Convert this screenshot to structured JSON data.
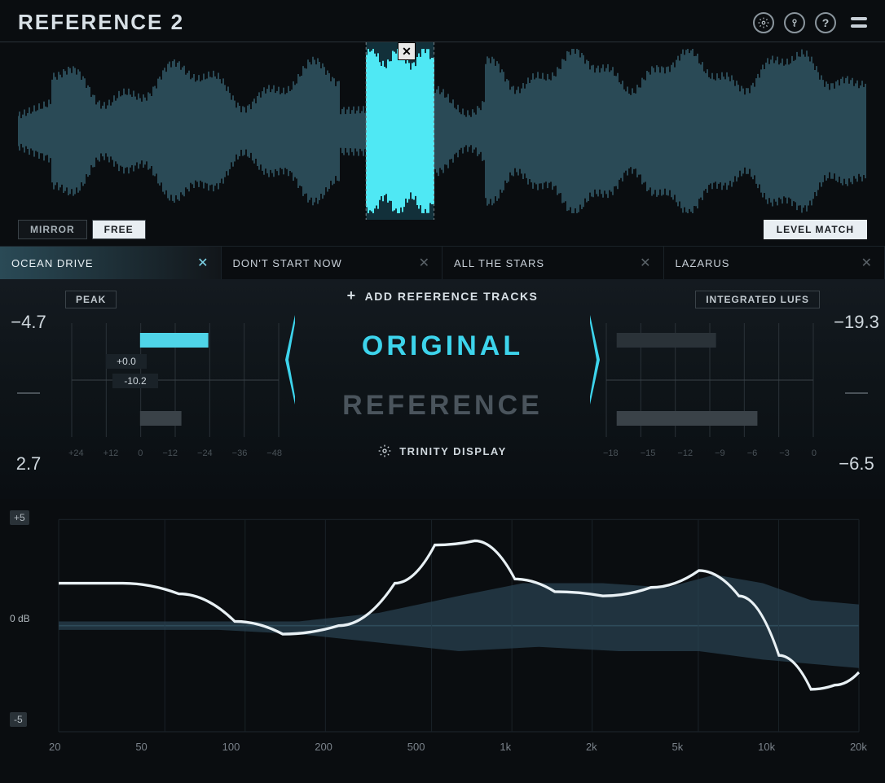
{
  "header": {
    "title": "REFERENCE 2"
  },
  "modes": {
    "mirror": "MIRROR",
    "free": "FREE",
    "level_match": "LEVEL MATCH",
    "active": "free"
  },
  "tracks": [
    {
      "name": "OCEAN DRIVE",
      "active": true
    },
    {
      "name": "DON'T START NOW",
      "active": false
    },
    {
      "name": "ALL THE STARS",
      "active": false
    },
    {
      "name": "LAZARUS",
      "active": false
    }
  ],
  "waveform": {
    "loop_start_pct": 41,
    "loop_end_pct": 49,
    "selection_color": "#4fe8f4",
    "wave_color_main": "#2a4a56",
    "wave_color_dark": "#1a2a32"
  },
  "center": {
    "add_ref": "ADD REFERENCE TRACKS",
    "original": "ORIGINAL",
    "reference": "REFERENCE",
    "trinity": "TRINITY DISPLAY",
    "accent_color": "#3dd4ec"
  },
  "peak_meter": {
    "label": "PEAK",
    "top_value": "−4.7",
    "bottom_value": "2.7",
    "bar1_value": "+0.0",
    "bar2_value": "-10.2",
    "ticks": [
      "+24",
      "+12",
      "0",
      "−12",
      "−24",
      "−36",
      "−48"
    ],
    "bar1_color": "#4fd4e8",
    "bar1_left_pct": 33,
    "bar1_width_pct": 33,
    "bar2_color": "#3a4248",
    "bar2_left_pct": 33,
    "bar2_width_pct": 20
  },
  "lufs_meter": {
    "label": "INTEGRATED LUFS",
    "top_value": "−19.3",
    "bottom_value": "−6.5",
    "ticks": [
      "−18",
      "−15",
      "−12",
      "−9",
      "−6",
      "−3",
      "0"
    ],
    "bar1_color": "#2a3238",
    "bar1_left_pct": 5,
    "bar1_width_pct": 48,
    "bar2_color": "#3a4248",
    "bar2_left_pct": 5,
    "bar2_width_pct": 68
  },
  "spectrum": {
    "y_top": "+5",
    "y_mid": "0 dB",
    "y_bottom": "-5",
    "x_labels": [
      "20",
      "50",
      "100",
      "200",
      "500",
      "1k",
      "2k",
      "5k",
      "10k",
      "20k"
    ],
    "line_color": "#e8f0f4",
    "fill_color": "#2a4454",
    "zero_line_color": "#3a5a68",
    "grid_color": "#1a2228",
    "curve_points": [
      [
        0.0,
        0.3
      ],
      [
        0.08,
        0.3
      ],
      [
        0.15,
        0.35
      ],
      [
        0.22,
        0.48
      ],
      [
        0.28,
        0.54
      ],
      [
        0.35,
        0.5
      ],
      [
        0.42,
        0.3
      ],
      [
        0.47,
        0.12
      ],
      [
        0.52,
        0.1
      ],
      [
        0.57,
        0.28
      ],
      [
        0.62,
        0.34
      ],
      [
        0.68,
        0.36
      ],
      [
        0.74,
        0.32
      ],
      [
        0.8,
        0.24
      ],
      [
        0.85,
        0.36
      ],
      [
        0.9,
        0.64
      ],
      [
        0.94,
        0.8
      ],
      [
        0.97,
        0.78
      ],
      [
        1.0,
        0.72
      ]
    ],
    "fill_top_points": [
      [
        0.0,
        0.48
      ],
      [
        0.1,
        0.48
      ],
      [
        0.2,
        0.48
      ],
      [
        0.3,
        0.48
      ],
      [
        0.4,
        0.44
      ],
      [
        0.5,
        0.36
      ],
      [
        0.58,
        0.3
      ],
      [
        0.68,
        0.3
      ],
      [
        0.76,
        0.32
      ],
      [
        0.82,
        0.26
      ],
      [
        0.88,
        0.3
      ],
      [
        0.94,
        0.38
      ],
      [
        1.0,
        0.4
      ]
    ],
    "fill_bot_points": [
      [
        0.0,
        0.52
      ],
      [
        0.1,
        0.52
      ],
      [
        0.2,
        0.52
      ],
      [
        0.3,
        0.54
      ],
      [
        0.4,
        0.58
      ],
      [
        0.5,
        0.62
      ],
      [
        0.6,
        0.6
      ],
      [
        0.7,
        0.62
      ],
      [
        0.8,
        0.62
      ],
      [
        0.88,
        0.66
      ],
      [
        0.94,
        0.68
      ],
      [
        1.0,
        0.7
      ]
    ]
  },
  "colors": {
    "bg": "#0a0d10",
    "panel": "#141a20",
    "accent": "#3dd4ec",
    "text": "#c8d0d8"
  }
}
